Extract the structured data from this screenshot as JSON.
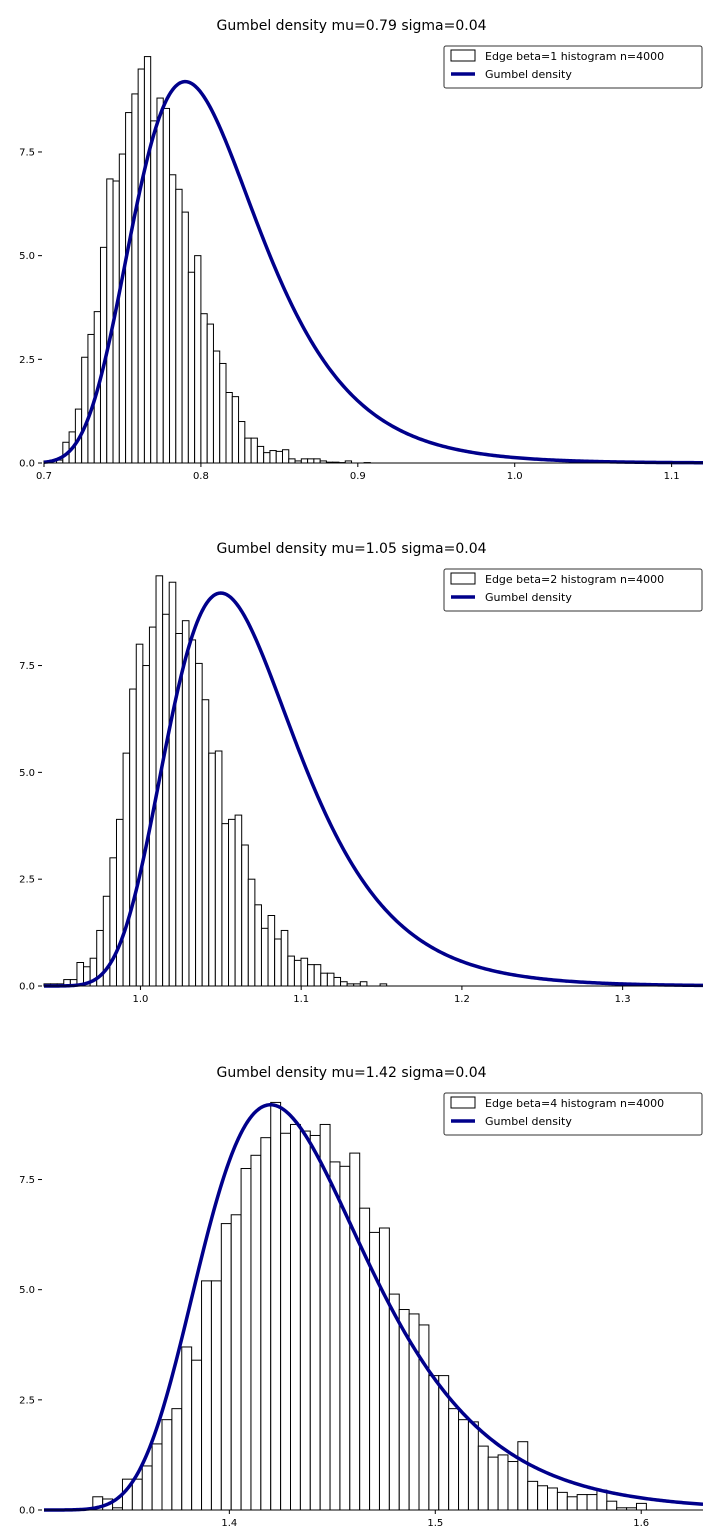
{
  "chart_data": [
    {
      "type": "bar",
      "title": "Gumbel density mu=0.79 sigma=0.04",
      "xlabel": "",
      "ylabel": "",
      "xlim": [
        0.7,
        1.12
      ],
      "ylim": [
        0,
        10.2
      ],
      "x_ticks": [
        0.7,
        0.8,
        0.9,
        1.0,
        1.1
      ],
      "y_ticks": [
        0.0,
        2.5,
        5.0,
        7.5
      ],
      "grid": false,
      "legend_position": "top-right",
      "curve_color": "#00008b",
      "mu": 0.79,
      "sigma": 0.04,
      "series": [
        {
          "name": "Edge beta=1 histogram n=4000",
          "kind": "histogram",
          "bin_start": 0.7,
          "bin_width": 0.004,
          "values": [
            0.05,
            0.05,
            0.07,
            0.5,
            0.75,
            1.3,
            2.55,
            3.1,
            3.65,
            5.2,
            6.85,
            6.8,
            7.45,
            8.45,
            8.9,
            9.5,
            9.8,
            8.25,
            8.8,
            8.55,
            6.95,
            6.6,
            6.05,
            4.6,
            5.0,
            3.6,
            3.35,
            2.7,
            2.4,
            1.7,
            1.6,
            1.0,
            0.6,
            0.6,
            0.4,
            0.25,
            0.3,
            0.28,
            0.32,
            0.1,
            0.05,
            0.1,
            0.1,
            0.1,
            0.05,
            0.02,
            0.02,
            0.01,
            0.05,
            0.0,
            0.0,
            0.01,
            0.0,
            0.0,
            0.0,
            0.0,
            0.0,
            0.0,
            0.0,
            0.0,
            0.0,
            0.0,
            0.0,
            0.0,
            0.0,
            0.0,
            0.0,
            0.0,
            0.0,
            0.0,
            0.0,
            0.0,
            0.0,
            0.0,
            0.0,
            0.0,
            0.0,
            0.0,
            0.0,
            0.0,
            0.0,
            0.0,
            0.0,
            0.0,
            0.0,
            0.0,
            0.0,
            0.0,
            0.0,
            0.0,
            0.0,
            0.0,
            0.0,
            0.0,
            0.0,
            0.0,
            0.0,
            0.0,
            0.0,
            0.0,
            0.0,
            0.0,
            0.0,
            0.0
          ]
        },
        {
          "name": "Gumbel density",
          "kind": "curve"
        }
      ]
    },
    {
      "type": "bar",
      "title": "Gumbel density mu=1.05 sigma=0.04",
      "xlabel": "",
      "ylabel": "",
      "xlim": [
        0.94,
        1.35
      ],
      "ylim": [
        0,
        9.9
      ],
      "x_ticks": [
        1.0,
        1.1,
        1.2,
        1.3
      ],
      "y_ticks": [
        0.0,
        2.5,
        5.0,
        7.5
      ],
      "grid": false,
      "legend_position": "top-right",
      "curve_color": "#00008b",
      "mu": 1.05,
      "sigma": 0.04,
      "series": [
        {
          "name": "Edge beta=2 histogram n=4000",
          "kind": "histogram",
          "bin_start": 0.94,
          "bin_width": 0.0041,
          "values": [
            0.05,
            0.05,
            0.05,
            0.15,
            0.15,
            0.55,
            0.45,
            0.65,
            1.3,
            2.1,
            3.0,
            3.9,
            5.45,
            6.95,
            8.0,
            7.5,
            8.4,
            9.6,
            8.7,
            9.45,
            8.25,
            8.55,
            8.1,
            7.55,
            6.7,
            5.45,
            5.5,
            3.8,
            3.9,
            4.0,
            3.3,
            2.5,
            1.9,
            1.35,
            1.65,
            1.1,
            1.3,
            0.7,
            0.6,
            0.65,
            0.5,
            0.5,
            0.3,
            0.3,
            0.2,
            0.1,
            0.05,
            0.05,
            0.1,
            0.0,
            0.0,
            0.05,
            0.0,
            0.0,
            0.0,
            0.0,
            0.0,
            0.0,
            0.0,
            0.0,
            0.0,
            0.0,
            0.0,
            0.0,
            0.0,
            0.0,
            0.0,
            0.0,
            0.0,
            0.0,
            0.0,
            0.0,
            0.0,
            0.0,
            0.0,
            0.0,
            0.0,
            0.0,
            0.0,
            0.0,
            0.0,
            0.0,
            0.0,
            0.0,
            0.0,
            0.0,
            0.0,
            0.0,
            0.0,
            0.0,
            0.0,
            0.0,
            0.0,
            0.0,
            0.0,
            0.0,
            0.0,
            0.0,
            0.0,
            0.0
          ]
        },
        {
          "name": "Gumbel density",
          "kind": "curve"
        }
      ]
    },
    {
      "type": "bar",
      "title": "Gumbel density mu=1.42 sigma=0.04",
      "xlabel": "",
      "ylabel": "",
      "xlim": [
        1.31,
        1.63
      ],
      "ylim": [
        0,
        9.6
      ],
      "x_ticks": [
        1.4,
        1.5,
        1.6
      ],
      "y_ticks": [
        0.0,
        2.5,
        5.0,
        7.5
      ],
      "grid": false,
      "legend_position": "top-right",
      "curve_color": "#00008b",
      "mu": 1.42,
      "sigma": 0.04,
      "series": [
        {
          "name": "Edge beta=4 histogram n=4000",
          "kind": "histogram",
          "bin_start": 1.3337,
          "bin_width": 0.0048,
          "values": [
            0.3,
            0.25,
            0.05,
            0.7,
            0.7,
            1.0,
            1.5,
            2.05,
            2.3,
            3.7,
            3.4,
            5.2,
            5.2,
            6.5,
            6.7,
            7.75,
            8.05,
            8.45,
            9.25,
            8.55,
            8.75,
            8.6,
            8.5,
            8.75,
            7.9,
            7.8,
            8.1,
            6.85,
            6.3,
            6.4,
            4.9,
            4.55,
            4.45,
            4.2,
            3.05,
            3.05,
            2.3,
            2.05,
            2.0,
            1.45,
            1.2,
            1.25,
            1.1,
            1.55,
            0.65,
            0.55,
            0.5,
            0.4,
            0.3,
            0.35,
            0.35,
            0.45,
            0.2,
            0.05,
            0.05,
            0.15,
            0.0,
            0.0,
            0.0,
            0.0,
            0.0,
            0.0,
            0.0,
            0.0,
            0.0,
            0.0,
            0.0,
            0.0,
            0.0,
            0.0,
            0.0,
            0.0,
            0.0,
            0.0,
            0.0,
            0.0,
            0.0,
            0.0,
            0.0,
            0.0,
            0.0,
            0.0,
            0.0,
            0.0,
            0.0,
            0.0,
            0.0,
            0.0,
            0.0,
            0.0,
            0.0,
            0.0,
            0.0,
            0.0,
            0.0,
            0.0,
            0.0,
            0.0,
            0.0,
            0.0
          ]
        },
        {
          "name": "Gumbel density",
          "kind": "curve"
        }
      ]
    }
  ]
}
